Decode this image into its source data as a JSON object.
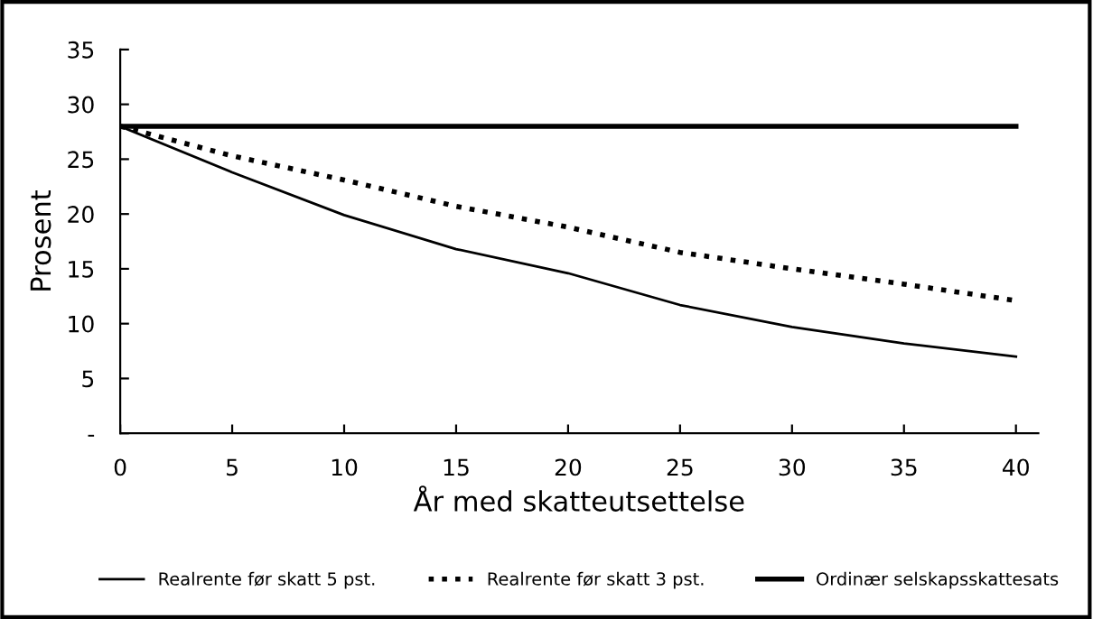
{
  "chart_data": {
    "type": "line",
    "xlabel": "År med skatteutsettelse",
    "ylabel": "Prosent",
    "x": [
      0,
      5,
      10,
      15,
      20,
      25,
      30,
      35,
      40
    ],
    "series": [
      {
        "name": "Realrente før skatt 5 pst.",
        "color": "#000000",
        "line_style": "solid",
        "values": [
          28,
          23.8,
          19.9,
          16.8,
          14.6,
          11.7,
          9.7,
          8.2,
          7.0
        ]
      },
      {
        "name": "Realrente før skatt 3 pst.",
        "color": "#000000",
        "line_style": "dotted",
        "values": [
          28,
          25.3,
          23.1,
          20.7,
          18.8,
          16.5,
          15.0,
          13.6,
          12.1
        ]
      },
      {
        "name": "Ordinær selskapsskattesats",
        "color": "#000000",
        "line_style": "solid",
        "values": [
          28,
          28,
          28,
          28,
          28,
          28,
          28,
          28,
          28
        ]
      }
    ],
    "xlim": [
      0,
      41
    ],
    "ylim": [
      0,
      35
    ],
    "xticks": [
      0,
      5,
      10,
      15,
      20,
      25,
      30,
      35,
      40
    ],
    "yticks": [
      {
        "value": 0,
        "label": "-"
      },
      5,
      10,
      15,
      20,
      25,
      30,
      35
    ],
    "grid": false,
    "legend": "bottom",
    "marker": "none"
  }
}
